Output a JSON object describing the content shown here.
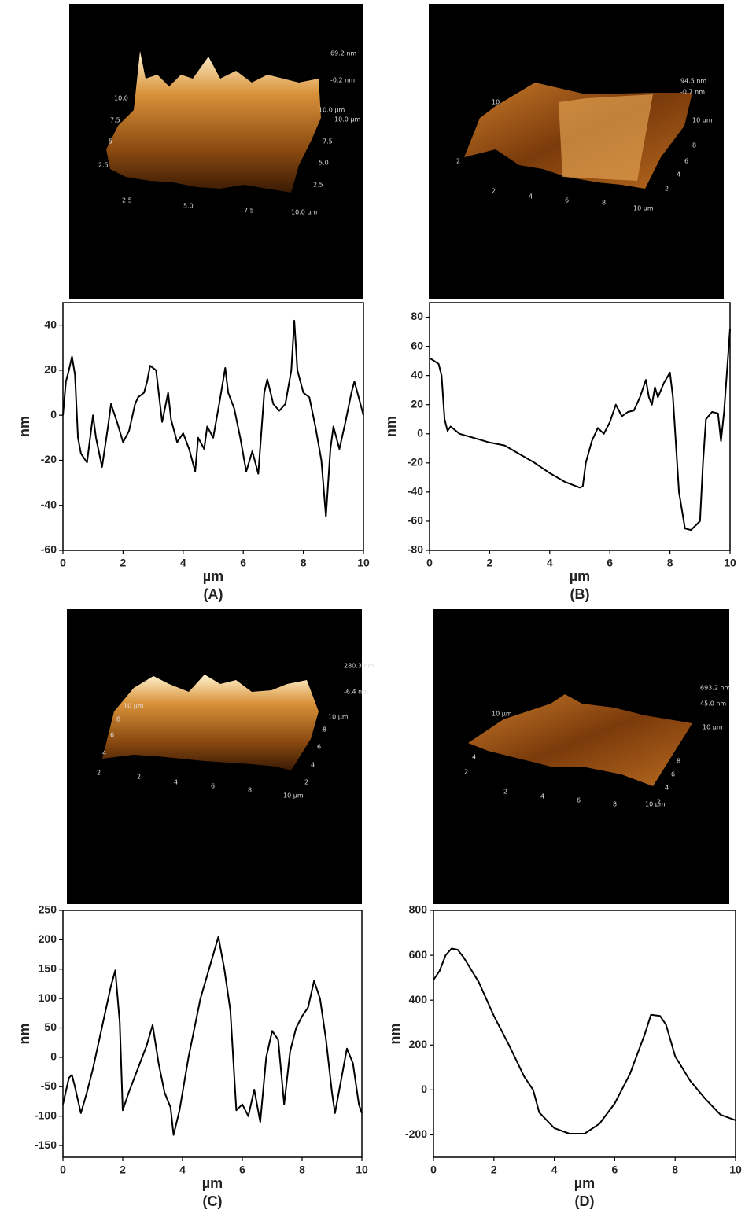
{
  "chart_data": [
    {
      "type": "line",
      "x_label": "µm",
      "y_label": "nm",
      "label": "(A)",
      "xlim": [
        0,
        10
      ],
      "ylim": [
        -60,
        50
      ],
      "xticks": [
        0,
        2,
        4,
        6,
        8,
        10
      ],
      "yticks": [
        -60,
        -40,
        -20,
        0,
        20,
        40
      ],
      "series": [
        {
          "color": "#000000",
          "x": [
            0,
            0.1,
            0.2,
            0.3,
            0.4,
            0.5,
            0.6,
            0.8,
            1.0,
            1.1,
            1.3,
            1.5,
            1.6,
            1.8,
            2.0,
            2.2,
            2.4,
            2.5,
            2.7,
            2.8,
            2.9,
            3.1,
            3.3,
            3.5,
            3.6,
            3.8,
            4.0,
            4.2,
            4.4,
            4.5,
            4.7,
            4.8,
            5.0,
            5.2,
            5.4,
            5.5,
            5.7,
            5.9,
            6.1,
            6.3,
            6.5,
            6.7,
            6.8,
            7.0,
            7.2,
            7.4,
            7.6,
            7.7,
            7.8,
            8.0,
            8.2,
            8.4,
            8.6,
            8.75,
            8.9,
            9.0,
            9.2,
            9.4,
            9.6,
            9.7,
            9.9,
            10
          ],
          "values": [
            0,
            15,
            20,
            26,
            18,
            -10,
            -17,
            -21,
            0,
            -10,
            -23,
            -5,
            5,
            -3,
            -12,
            -7,
            5,
            8,
            10,
            15,
            22,
            20,
            -3,
            10,
            -2,
            -12,
            -8,
            -15,
            -25,
            -10,
            -15,
            -5,
            -10,
            5,
            21,
            10,
            3,
            -10,
            -25,
            -16,
            -26,
            10,
            16,
            5,
            2,
            5,
            20,
            42,
            20,
            10,
            8,
            -5,
            -20,
            -45,
            -15,
            -5,
            -15,
            -3,
            10,
            15,
            5,
            0
          ]
        }
      ]
    },
    {
      "type": "line",
      "x_label": "µm",
      "y_label": "nm",
      "label": "(B)",
      "xlim": [
        0,
        10
      ],
      "ylim": [
        -80,
        90
      ],
      "xticks": [
        0,
        2,
        4,
        6,
        8,
        10
      ],
      "yticks": [
        -80,
        -60,
        -40,
        -20,
        0,
        20,
        40,
        60,
        80
      ],
      "series": [
        {
          "color": "#000000",
          "x": [
            0,
            0.3,
            0.4,
            0.5,
            0.6,
            0.7,
            1,
            1.5,
            2,
            2.5,
            3,
            3.5,
            4,
            4.5,
            5,
            5.1,
            5.2,
            5.4,
            5.6,
            5.8,
            6,
            6.2,
            6.4,
            6.6,
            6.8,
            7.0,
            7.2,
            7.3,
            7.4,
            7.5,
            7.6,
            7.8,
            8.0,
            8.1,
            8.3,
            8.5,
            8.7,
            9.0,
            9.1,
            9.2,
            9.4,
            9.6,
            9.7,
            9.8,
            10
          ],
          "values": [
            52,
            48,
            40,
            10,
            2,
            5,
            0,
            -3,
            -6,
            -8,
            -14,
            -20,
            -27,
            -33,
            -37,
            -36,
            -20,
            -5,
            4,
            0,
            8,
            20,
            12,
            15,
            16,
            25,
            37,
            25,
            20,
            32,
            25,
            35,
            42,
            25,
            -40,
            -65,
            -66,
            -60,
            -20,
            10,
            15,
            14,
            -5,
            15,
            72
          ]
        }
      ]
    },
    {
      "type": "line",
      "x_label": "µm",
      "y_label": "nm",
      "label": "(C)",
      "xlim": [
        0,
        10
      ],
      "ylim": [
        -170,
        250
      ],
      "xticks": [
        0,
        2,
        4,
        6,
        8,
        10
      ],
      "yticks": [
        -150,
        -100,
        -50,
        0,
        50,
        100,
        150,
        200,
        250
      ],
      "series": [
        {
          "color": "#000000",
          "x": [
            0,
            0.2,
            0.3,
            0.4,
            0.6,
            0.8,
            1.0,
            1.3,
            1.6,
            1.75,
            1.9,
            2.0,
            2.2,
            2.5,
            2.8,
            3.0,
            3.2,
            3.4,
            3.6,
            3.7,
            3.9,
            4.2,
            4.6,
            5.0,
            5.2,
            5.4,
            5.6,
            5.8,
            6.0,
            6.2,
            6.4,
            6.6,
            6.8,
            7.0,
            7.2,
            7.4,
            7.6,
            7.8,
            8.0,
            8.2,
            8.4,
            8.6,
            8.8,
            9.0,
            9.1,
            9.3,
            9.5,
            9.7,
            9.9,
            10
          ],
          "values": [
            -80,
            -35,
            -30,
            -50,
            -95,
            -60,
            -20,
            50,
            120,
            148,
            60,
            -90,
            -60,
            -20,
            20,
            55,
            -10,
            -60,
            -85,
            -132,
            -90,
            0,
            100,
            170,
            205,
            150,
            80,
            -90,
            -80,
            -100,
            -55,
            -110,
            0,
            45,
            30,
            -80,
            10,
            50,
            70,
            85,
            130,
            100,
            30,
            -60,
            -95,
            -40,
            15,
            -10,
            -80,
            -95
          ]
        }
      ]
    },
    {
      "type": "line",
      "x_label": "µm",
      "y_label": "nm",
      "label": "(D)",
      "xlim": [
        0,
        10
      ],
      "ylim": [
        -300,
        800
      ],
      "xticks": [
        0,
        2,
        4,
        6,
        8,
        10
      ],
      "yticks": [
        -200,
        0,
        200,
        400,
        600,
        800
      ],
      "series": [
        {
          "color": "#000000",
          "x": [
            0,
            0.2,
            0.4,
            0.6,
            0.8,
            1.0,
            1.5,
            2,
            2.5,
            3,
            3.3,
            3.5,
            4,
            4.5,
            5,
            5.5,
            6,
            6.5,
            7,
            7.2,
            7.5,
            7.7,
            8,
            8.5,
            9,
            9.5,
            10
          ],
          "values": [
            490,
            530,
            600,
            630,
            625,
            590,
            480,
            330,
            200,
            60,
            0,
            -100,
            -170,
            -195,
            -195,
            -150,
            -60,
            70,
            250,
            335,
            330,
            290,
            150,
            40,
            -40,
            -110,
            -135
          ]
        }
      ]
    }
  ],
  "afm_images": [
    {
      "labels": [
        "69.2 nm",
        "-0.2 nm",
        "10.0 µm",
        "10.0 µm",
        "10.0",
        "7.5",
        "5",
        "2.5",
        "2.5",
        "5.0",
        "7.5",
        "10.0 µm",
        "7.5",
        "5.0",
        "2.5"
      ]
    },
    {
      "labels": [
        "94.5 nm",
        "-0.7 nm",
        "10 µm",
        "10",
        "2",
        "2",
        "4",
        "6",
        "8",
        "10 µm",
        "8",
        "6",
        "4",
        "2"
      ]
    },
    {
      "labels": [
        "280.3 nm",
        "-6.4 nm",
        "10 µm",
        "10 µm",
        "8",
        "6",
        "4",
        "2",
        "8",
        "6",
        "4",
        "2",
        "2",
        "4",
        "6",
        "8",
        "10 µm"
      ]
    },
    {
      "labels": [
        "693.2 nm",
        "45.0 nm",
        "10 µm",
        "10 µm",
        "2",
        "4",
        "6",
        "8",
        "10 µm",
        "8",
        "6",
        "4",
        "2",
        "4",
        "2"
      ]
    }
  ]
}
